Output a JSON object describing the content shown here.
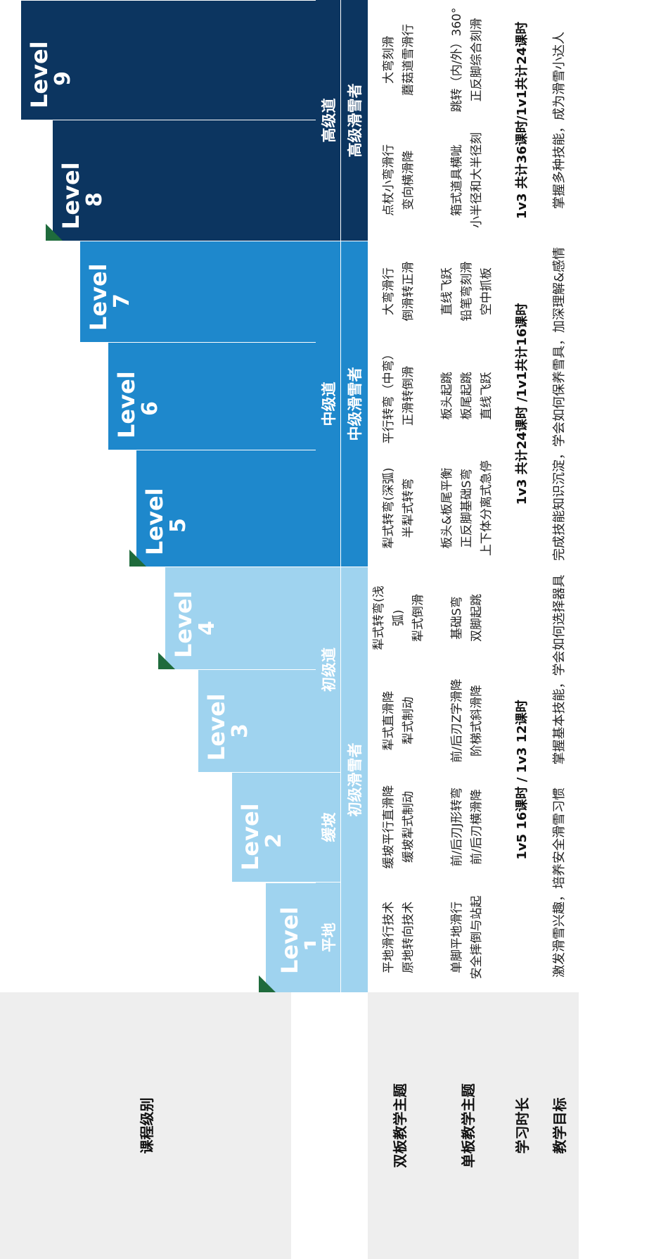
{
  "colors": {
    "beginner": "#9fd3ef",
    "intermediate": "#1e88cc",
    "advanced": "#0c3560",
    "header_bg": "#eeeeee",
    "flag": "#1f6b3c"
  },
  "row_headers": {
    "course_level": "课程级别",
    "double_board": "双板教学主题",
    "single_board": "单板教学主题",
    "duration": "学习时长",
    "goal": "教学目标"
  },
  "levels": [
    {
      "label": "Level",
      "num": "1"
    },
    {
      "label": "Level",
      "num": "2"
    },
    {
      "label": "Level",
      "num": "3"
    },
    {
      "label": "Level",
      "num": "4"
    },
    {
      "label": "Level",
      "num": "5"
    },
    {
      "label": "Level",
      "num": "6"
    },
    {
      "label": "Level",
      "num": "7"
    },
    {
      "label": "Level",
      "num": "8"
    },
    {
      "label": "Level",
      "num": "9"
    }
  ],
  "terrain": {
    "flat": "平地",
    "gentle": "缓坡",
    "beginner_slope": "初级道",
    "intermediate_slope": "中级道",
    "advanced_slope": "高级道"
  },
  "skier_level": {
    "beginner": "初级滑雪者",
    "intermediate": "中级滑雪者",
    "advanced": "高级滑雪者"
  },
  "double_board": [
    [
      "平地滑行技术",
      "原地转向技术"
    ],
    [
      "缓坡平行直滑降",
      "缓坡犁式制动"
    ],
    [
      "犁式直滑降",
      "犁式制动"
    ],
    [
      "犁式转弯(浅",
      "弧)",
      "犁式倒滑"
    ],
    [
      "犁式转弯(深弧)",
      "半犁式转弯"
    ],
    [
      "平行转弯（中弯）",
      "正滑转倒滑"
    ],
    [
      "大弯滑行",
      "倒滑转正滑"
    ],
    [
      "点杖小弯滑行",
      "变向横滑降"
    ],
    [
      "大弯刻滑",
      "蘑菇道雪滑行"
    ]
  ],
  "single_board": [
    [
      "单脚平地滑行",
      "安全摔倒与站起"
    ],
    [
      "前/后刃J形转弯",
      "前/后刃横滑降"
    ],
    [
      "前/后刃Z字滑降",
      "阶梯式斜滑降"
    ],
    [
      "基础S弯",
      "双脚起跳"
    ],
    [
      "板头&板尾平衡",
      "正反脚基础S弯",
      "上下体分离式急停"
    ],
    [
      "板头起跳",
      "板尾起跳",
      "直线飞跃"
    ],
    [
      "直线飞跃",
      "铅笔弯刻滑",
      "空中抓板"
    ],
    [
      "箱式道具横呲",
      "小半径和大半径刻"
    ],
    [
      "跳转（内/外）360°",
      "正反脚综合刻滑"
    ]
  ],
  "duration": {
    "beginner": "1v5 16课时 / 1v3 12课时",
    "intermediate": "1v3 共计24课时 /1v1共计16课时",
    "advanced": "1v3 共计36课时/1v1共计24课时"
  },
  "goals": {
    "g1": "激发滑雪兴趣，培养安全滑雪习惯",
    "g2": "掌握基本技能，学会如何选择器具",
    "g3": "完成技能知识沉淀，学会如何保养雪具，加深理解&感情",
    "g4": "掌握多种技能，成为滑雪小达人"
  }
}
